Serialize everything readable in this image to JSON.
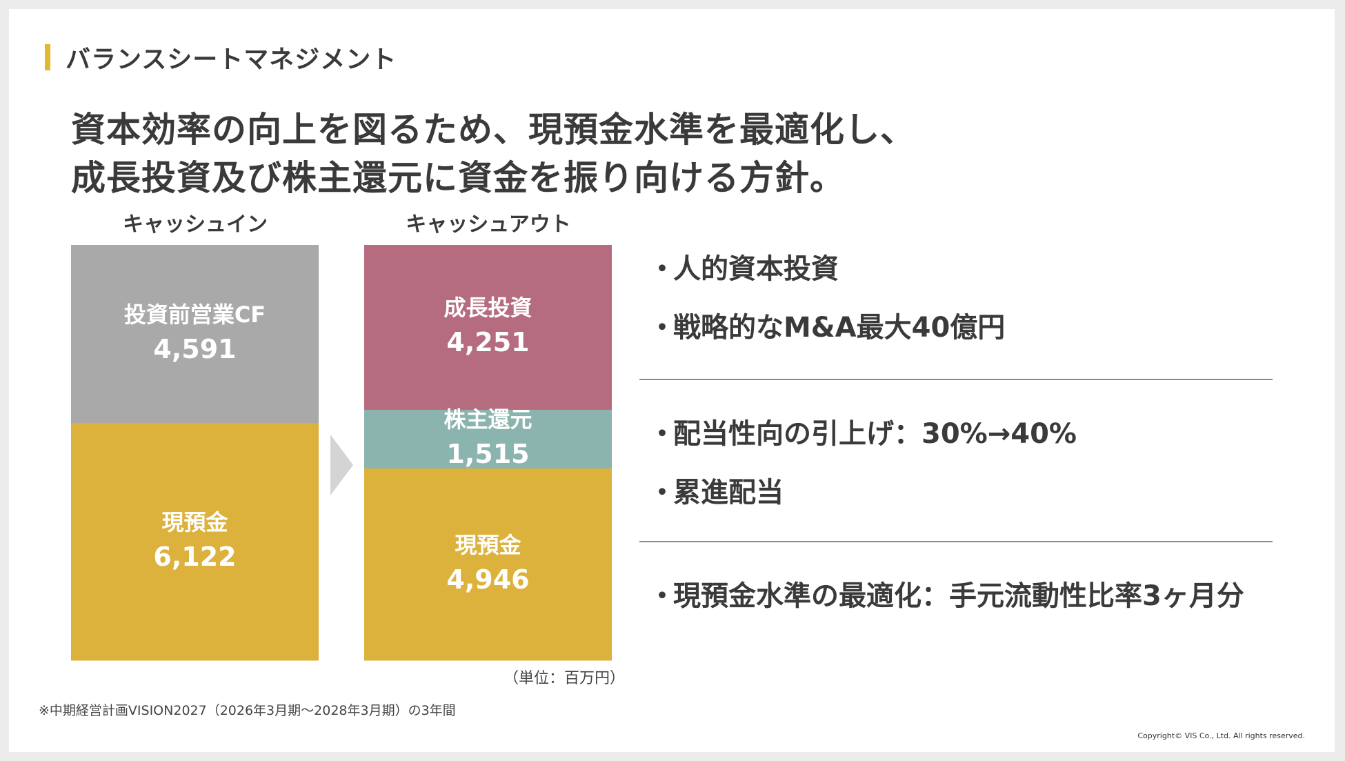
{
  "section": {
    "title": "バランスシートマネジメント"
  },
  "headline": {
    "line1": "資本効率の向上を図るため、現預金水準を最適化し、",
    "line2": "成長投資及び株主還元に資金を振り向ける方針。"
  },
  "chart_data": {
    "type": "bar",
    "stacked": true,
    "unit": "（単位：百万円）",
    "colors": {
      "operating_cf": "#a9a9a9",
      "cash": "#dcb23c",
      "growth": "#b56c7e",
      "shareholder": "#8ab4ad",
      "arrow": "#d4d4d4"
    },
    "columns": [
      {
        "label": "キャッシュイン",
        "segments": [
          {
            "key": "operating_cf",
            "name": "投資前営業CF",
            "value": 4591,
            "value_label": "4,591"
          },
          {
            "key": "cash",
            "name": "現預金",
            "value": 6122,
            "value_label": "6,122"
          }
        ]
      },
      {
        "label": "キャッシュアウト",
        "segments": [
          {
            "key": "growth",
            "name": "成長投資",
            "value": 4251,
            "value_label": "4,251"
          },
          {
            "key": "shareholder",
            "name": "株主還元",
            "value": 1515,
            "value_label": "1,515"
          },
          {
            "key": "cash",
            "name": "現預金",
            "value": 4946,
            "value_label": "4,946"
          }
        ]
      }
    ]
  },
  "bullets": {
    "group1": [
      "人的資本投資",
      "戦略的なM&A最大40億円"
    ],
    "group2": [
      "配当性向の引上げ：30%→40%",
      "累進配当"
    ],
    "group3": [
      "現預金水準の最適化：手元流動性比率3ヶ月分"
    ],
    "marker": "・"
  },
  "footnote": "※中期経営計画VISION2027（2026年3月期～2028年3月期）の3年間",
  "copyright": "Copyright© VIS Co., Ltd. All rights reserved."
}
